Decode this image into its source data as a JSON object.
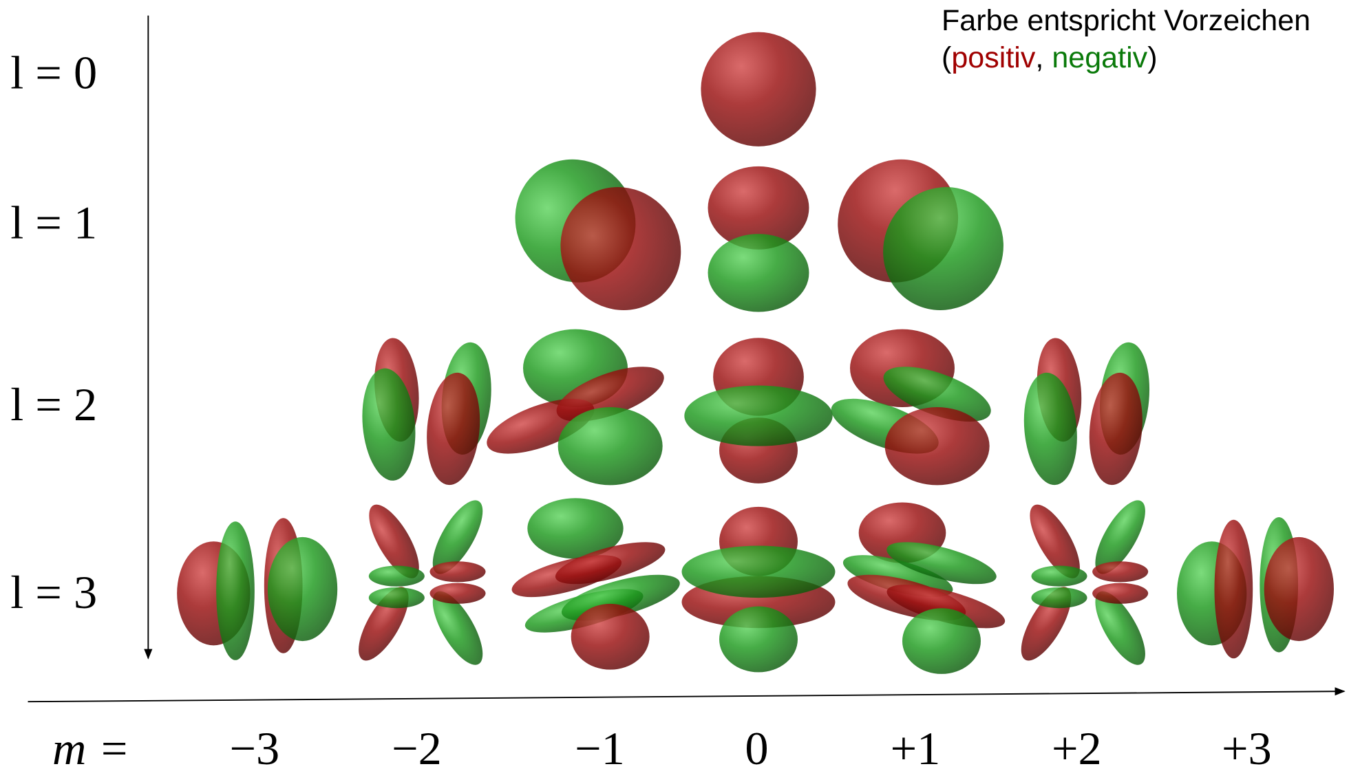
{
  "legend": {
    "title": "Farbe entspricht Vorzeichen",
    "open": "(",
    "positive": "positiv",
    "separator": ", ",
    "negative": "negativ",
    "close": ")"
  },
  "rows": [
    {
      "label": "l = 0"
    },
    {
      "label": "l = 1"
    },
    {
      "label": "l = 2"
    },
    {
      "label": "l = 3"
    }
  ],
  "columns": {
    "label": "m =",
    "values": [
      "−3",
      "−2",
      "−1",
      "0",
      "+1",
      "+2",
      "+3"
    ]
  }
}
